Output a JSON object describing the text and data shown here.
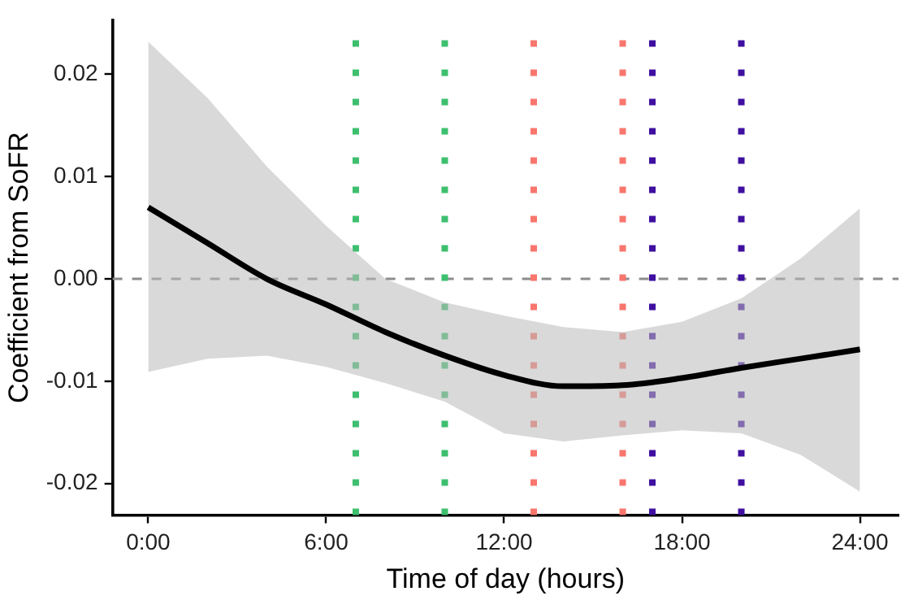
{
  "chart_data": {
    "type": "line",
    "xlabel": "Time of day (hours)",
    "ylabel": "Coefficient from SoFR",
    "xlim": [
      -1.2,
      25.3
    ],
    "ylim": [
      -0.0231,
      0.0253
    ],
    "xticks": [
      {
        "value": 0,
        "label": "0:00"
      },
      {
        "value": 6,
        "label": "6:00"
      },
      {
        "value": 12,
        "label": "12:00"
      },
      {
        "value": 18,
        "label": "18:00"
      },
      {
        "value": 24,
        "label": "24:00"
      }
    ],
    "yticks": [
      {
        "value": -0.02,
        "label": "-0.02"
      },
      {
        "value": -0.01,
        "label": "-0.01"
      },
      {
        "value": 0,
        "label": "0.00"
      },
      {
        "value": 0.01,
        "label": "0.01"
      },
      {
        "value": 0.02,
        "label": "0.02"
      }
    ],
    "x": [
      0,
      2,
      4,
      6,
      8,
      10,
      12,
      14,
      16,
      18,
      20,
      22,
      24
    ],
    "series": [
      {
        "color": "#000000",
        "values": [
          0.007,
          0.0035,
          0.0,
          -0.0025,
          -0.0052,
          -0.0075,
          -0.0094,
          -0.0105,
          -0.0104,
          -0.0097,
          -0.0087,
          -0.0078,
          -0.0069
        ],
        "lower": [
          -0.0091,
          -0.0078,
          -0.0075,
          -0.0086,
          -0.0102,
          -0.012,
          -0.0151,
          -0.0159,
          -0.0153,
          -0.0148,
          -0.0151,
          -0.0172,
          -0.0208
        ],
        "upper": [
          0.0232,
          0.0177,
          0.011,
          0.0052,
          0.0,
          -0.0023,
          -0.0036,
          -0.0047,
          -0.0052,
          -0.0042,
          -0.0019,
          0.002,
          0.0069
        ]
      }
    ],
    "ref_lines": [
      {
        "axis": "y",
        "value": 0,
        "color": "#8c8c8c",
        "line_style": "dashed"
      },
      {
        "axis": "x",
        "value": 7,
        "color": "#3dbf6e",
        "line_style": "dotted"
      },
      {
        "axis": "x",
        "value": 10,
        "color": "#3dbf6e",
        "line_style": "dotted"
      },
      {
        "axis": "x",
        "value": 13,
        "color": "#f8766d",
        "line_style": "dotted"
      },
      {
        "axis": "x",
        "value": 16,
        "color": "#f8766d",
        "line_style": "dotted"
      },
      {
        "axis": "x",
        "value": 17,
        "color": "#3f0fa0",
        "line_style": "dotted"
      },
      {
        "axis": "x",
        "value": 20,
        "color": "#3f0fa0",
        "line_style": "dotted"
      }
    ],
    "grid": false,
    "legend": false,
    "marker": "none",
    "line_style": "solid"
  }
}
